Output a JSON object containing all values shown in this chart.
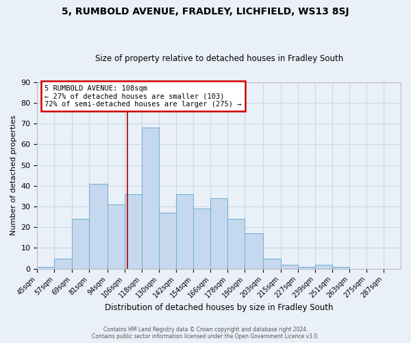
{
  "title": "5, RUMBOLD AVENUE, FRADLEY, LICHFIELD, WS13 8SJ",
  "subtitle": "Size of property relative to detached houses in Fradley South",
  "xlabel": "Distribution of detached houses by size in Fradley South",
  "ylabel": "Number of detached properties",
  "bin_labels": [
    "45sqm",
    "57sqm",
    "69sqm",
    "81sqm",
    "94sqm",
    "106sqm",
    "118sqm",
    "130sqm",
    "142sqm",
    "154sqm",
    "166sqm",
    "178sqm",
    "190sqm",
    "203sqm",
    "215sqm",
    "227sqm",
    "239sqm",
    "251sqm",
    "263sqm",
    "275sqm",
    "287sqm"
  ],
  "bin_edges": [
    45,
    57,
    69,
    81,
    94,
    106,
    118,
    130,
    142,
    154,
    166,
    178,
    190,
    203,
    215,
    227,
    239,
    251,
    263,
    275,
    287
  ],
  "bar_heights": [
    1,
    5,
    24,
    41,
    31,
    36,
    68,
    27,
    36,
    29,
    34,
    24,
    17,
    5,
    2,
    1,
    2,
    1,
    0,
    0,
    0
  ],
  "bar_color": "#c5d8ed",
  "bar_edge_color": "#6baed6",
  "grid_color": "#c8d8e8",
  "background_color": "#eaf0f8",
  "ylim": [
    0,
    90
  ],
  "yticks": [
    0,
    10,
    20,
    30,
    40,
    50,
    60,
    70,
    80,
    90
  ],
  "property_line_x": 108,
  "property_line_color": "#aa0000",
  "annotation_title": "5 RUMBOLD AVENUE: 108sqm",
  "annotation_line1": "← 27% of detached houses are smaller (103)",
  "annotation_line2": "72% of semi-detached houses are larger (275) →",
  "annotation_box_color": "#ffffff",
  "annotation_box_edge_color": "#cc0000",
  "footer_line1": "Contains HM Land Registry data © Crown copyright and database right 2024.",
  "footer_line2": "Contains public sector information licensed under the Open Government Licence v3.0."
}
